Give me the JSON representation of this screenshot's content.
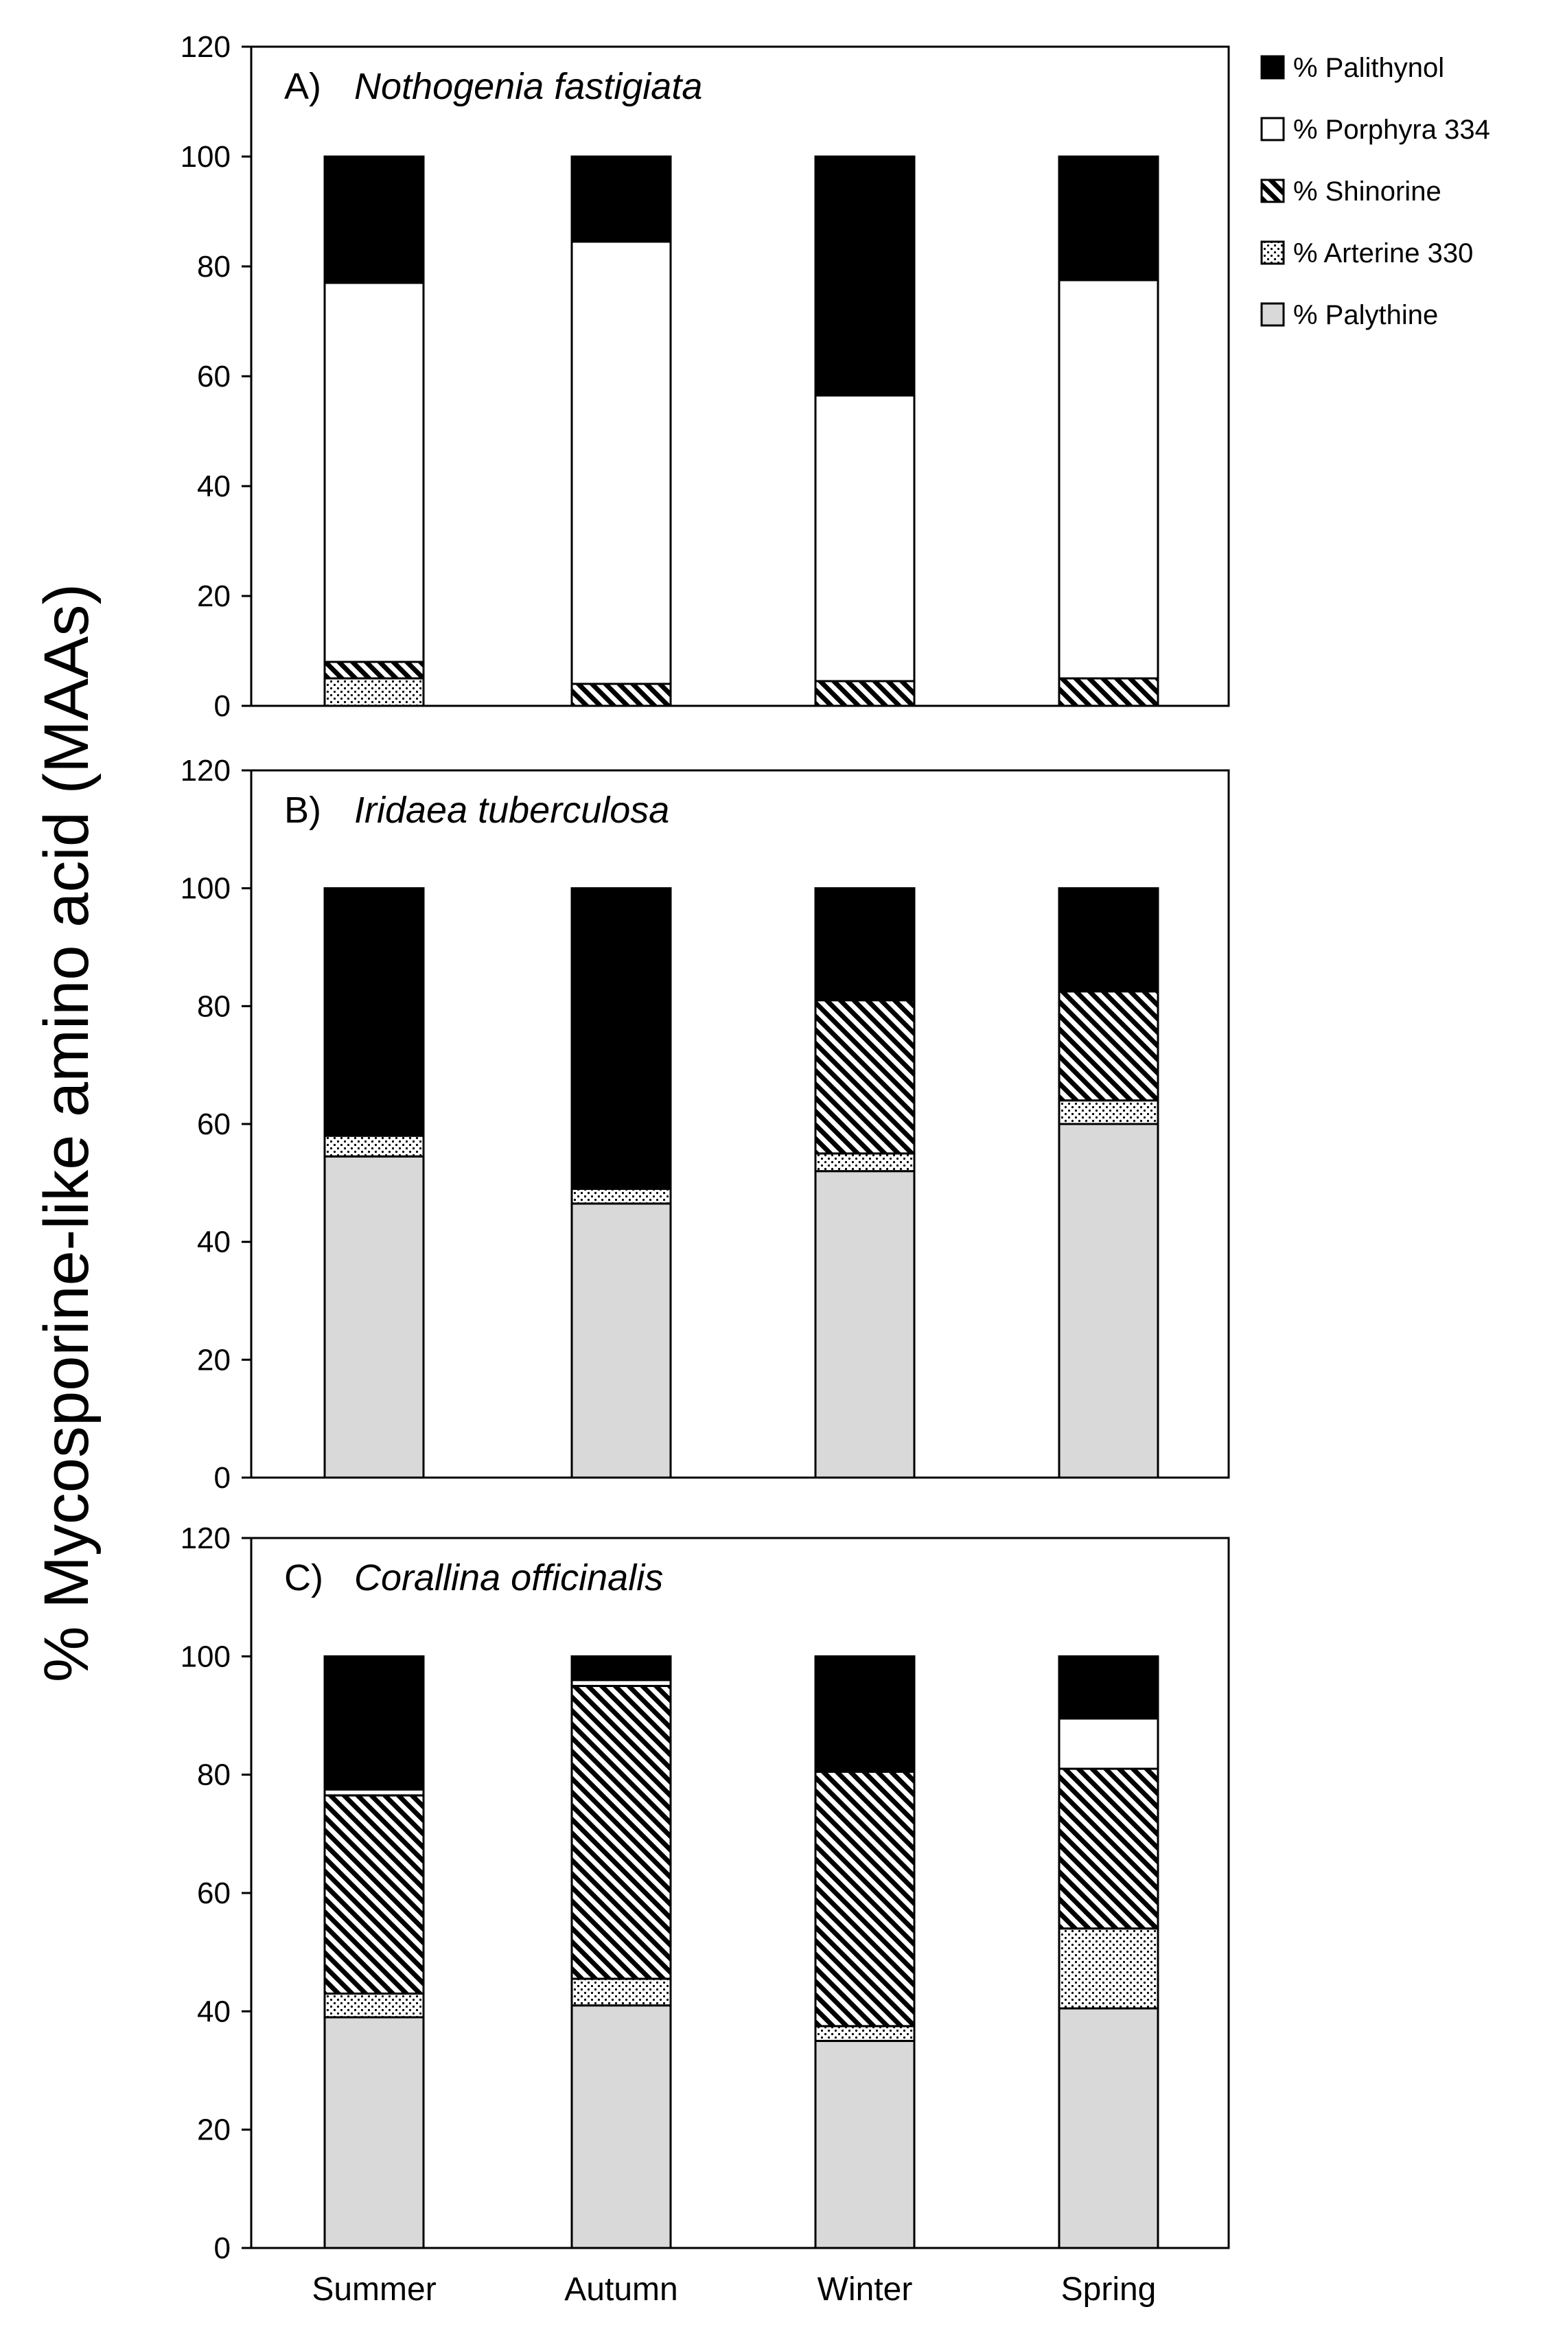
{
  "chart_data": {
    "type": "bar",
    "stacked": true,
    "ylabel": "% Mycosporine-like amino acid (MAAs)",
    "categories": [
      "Summer",
      "Autumn",
      "Winter",
      "Spring"
    ],
    "ylim": [
      0,
      120
    ],
    "yticks": [
      0,
      20,
      40,
      60,
      80,
      100,
      120
    ],
    "legend": [
      {
        "key": "palithynol",
        "label": "% Palithynol",
        "fill": "#000000"
      },
      {
        "key": "porphyra",
        "label": "% Porphyra 334",
        "fill": "#ffffff"
      },
      {
        "key": "shinorine",
        "label": "% Shinorine",
        "fill": "pattern:hatch"
      },
      {
        "key": "arterine",
        "label": "% Arterine 330",
        "fill": "pattern:dots"
      },
      {
        "key": "palythine",
        "label": "% Palythine",
        "fill": "#d9d9d9"
      }
    ],
    "panels": [
      {
        "letter": "A)",
        "species": "Nothogenia fastigiata",
        "series": [
          {
            "name": "% Palythine",
            "key": "palythine",
            "values": [
              0,
              0,
              0,
              0
            ]
          },
          {
            "name": "% Arterine 330",
            "key": "arterine",
            "values": [
              5,
              0,
              0,
              0
            ]
          },
          {
            "name": "% Shinorine",
            "key": "shinorine",
            "values": [
              3,
              4,
              4.5,
              5
            ]
          },
          {
            "name": "% Porphyra 334",
            "key": "porphyra",
            "values": [
              69,
              80.5,
              52,
              72.5
            ]
          },
          {
            "name": "% Palithynol",
            "key": "palithynol",
            "values": [
              23,
              15.5,
              43.5,
              22.5
            ]
          }
        ]
      },
      {
        "letter": "B)",
        "species": "Iridaea tuberculosa",
        "series": [
          {
            "name": "% Palythine",
            "key": "palythine",
            "values": [
              54.5,
              46.5,
              52,
              60
            ]
          },
          {
            "name": "% Arterine 330",
            "key": "arterine",
            "values": [
              3.5,
              2.5,
              3,
              4
            ]
          },
          {
            "name": "% Shinorine",
            "key": "shinorine",
            "values": [
              0,
              0,
              26,
              18.5
            ]
          },
          {
            "name": "% Porphyra 334",
            "key": "porphyra",
            "values": [
              0,
              0,
              0,
              0
            ]
          },
          {
            "name": "% Palithynol",
            "key": "palithynol",
            "values": [
              42,
              51,
              19,
              17.5
            ]
          }
        ]
      },
      {
        "letter": "C)",
        "species": "Corallina officinalis",
        "series": [
          {
            "name": "% Palythine",
            "key": "palythine",
            "values": [
              39,
              41,
              35,
              40.5
            ]
          },
          {
            "name": "% Arterine 330",
            "key": "arterine",
            "values": [
              4,
              4.5,
              2.5,
              13.5
            ]
          },
          {
            "name": "% Shinorine",
            "key": "shinorine",
            "values": [
              33.5,
              49.5,
              43,
              27
            ]
          },
          {
            "name": "% Porphyra 334",
            "key": "porphyra",
            "values": [
              1,
              1,
              0,
              8.5
            ]
          },
          {
            "name": "% Palithynol",
            "key": "palithynol",
            "values": [
              22.5,
              4,
              19.5,
              10.5
            ]
          }
        ]
      }
    ]
  }
}
